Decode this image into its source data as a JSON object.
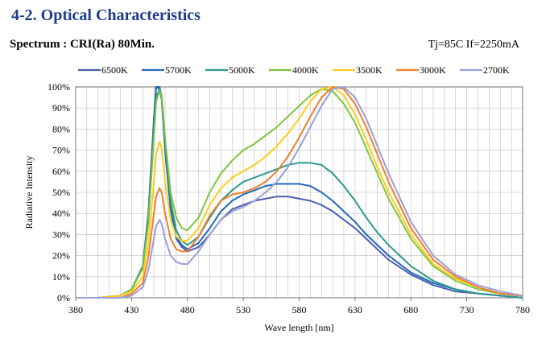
{
  "section_title": "4-2. Optical Characteristics",
  "subtitle": "Spectrum : CRI(Ra) 80Min.",
  "conditions": "Tj=85C    If=2250mA",
  "chart_data": {
    "type": "line",
    "title": "",
    "xlabel": "Wave length [nm]",
    "ylabel": "Radiative Intensity",
    "xlim": [
      380,
      780
    ],
    "ylim": [
      0,
      100
    ],
    "x_ticks": [
      380,
      430,
      480,
      530,
      580,
      630,
      680,
      730,
      780
    ],
    "y_ticks": [
      "0%",
      "10%",
      "20%",
      "30%",
      "40%",
      "50%",
      "60%",
      "70%",
      "80%",
      "90%",
      "100%"
    ],
    "grid": true,
    "legend_position": "top",
    "series": [
      {
        "name": "6500K",
        "color": "#4a5fb0",
        "x": [
          380,
          400,
          420,
          430,
          440,
          445,
          450,
          452,
          455,
          457,
          460,
          465,
          470,
          475,
          480,
          490,
          500,
          510,
          520,
          530,
          540,
          550,
          560,
          570,
          580,
          590,
          600,
          610,
          620,
          630,
          640,
          650,
          660,
          680,
          700,
          720,
          740,
          760,
          780
        ],
        "y": [
          0,
          0,
          1,
          4,
          15,
          40,
          85,
          100,
          99,
          94,
          70,
          42,
          28,
          24,
          22,
          24,
          30,
          37,
          42,
          44,
          46,
          47,
          48,
          48,
          47,
          46,
          44,
          41,
          37,
          33,
          28,
          23,
          18,
          11,
          6,
          3,
          2,
          1,
          0
        ]
      },
      {
        "name": "5700K",
        "color": "#2468b8",
        "x": [
          380,
          400,
          420,
          430,
          440,
          445,
          450,
          452,
          455,
          457,
          460,
          465,
          470,
          475,
          480,
          490,
          500,
          510,
          520,
          530,
          540,
          550,
          560,
          570,
          580,
          590,
          600,
          610,
          620,
          630,
          640,
          650,
          660,
          680,
          700,
          720,
          740,
          760,
          780
        ],
        "y": [
          0,
          0,
          1,
          4,
          14,
          38,
          82,
          100,
          100,
          95,
          70,
          42,
          29,
          25,
          23,
          26,
          33,
          41,
          46,
          49,
          51,
          53,
          54,
          54,
          54,
          53,
          50,
          46,
          41,
          36,
          30,
          25,
          20,
          12,
          7,
          4,
          2,
          1,
          0
        ]
      },
      {
        "name": "5000K",
        "color": "#2e9a8a",
        "x": [
          380,
          400,
          420,
          430,
          440,
          445,
          450,
          452,
          455,
          457,
          460,
          465,
          470,
          475,
          480,
          490,
          500,
          510,
          520,
          530,
          540,
          550,
          560,
          570,
          580,
          590,
          600,
          610,
          620,
          630,
          640,
          650,
          660,
          680,
          700,
          720,
          740,
          760,
          780
        ],
        "y": [
          0,
          0,
          1,
          4,
          14,
          36,
          78,
          95,
          99,
          96,
          74,
          46,
          32,
          27,
          25,
          29,
          38,
          46,
          51,
          55,
          57,
          59,
          61,
          63,
          64,
          64,
          63,
          59,
          53,
          46,
          38,
          31,
          25,
          15,
          8,
          4,
          2,
          1,
          0
        ]
      },
      {
        "name": "4000K",
        "color": "#7dc63c",
        "x": [
          380,
          400,
          420,
          430,
          440,
          445,
          450,
          452,
          455,
          457,
          460,
          465,
          470,
          475,
          480,
          490,
          500,
          510,
          520,
          530,
          540,
          550,
          560,
          570,
          580,
          590,
          600,
          610,
          620,
          630,
          640,
          650,
          660,
          680,
          700,
          720,
          740,
          760,
          780
        ],
        "y": [
          0,
          0,
          1,
          4,
          14,
          35,
          76,
          93,
          98,
          96,
          76,
          50,
          38,
          33,
          32,
          38,
          50,
          59,
          65,
          70,
          73,
          77,
          81,
          86,
          91,
          96,
          99,
          98,
          92,
          83,
          71,
          59,
          47,
          28,
          15,
          8,
          4,
          2,
          1
        ]
      },
      {
        "name": "3500K",
        "color": "#ffcc1a",
        "x": [
          380,
          400,
          420,
          430,
          440,
          445,
          450,
          452,
          455,
          457,
          460,
          465,
          470,
          475,
          480,
          490,
          500,
          510,
          520,
          530,
          540,
          550,
          560,
          570,
          580,
          590,
          600,
          610,
          620,
          630,
          640,
          650,
          660,
          680,
          700,
          720,
          740,
          760,
          780
        ],
        "y": [
          0,
          0,
          1,
          3,
          10,
          26,
          55,
          68,
          74,
          71,
          55,
          37,
          29,
          27,
          27,
          33,
          44,
          52,
          57,
          60,
          63,
          67,
          72,
          78,
          85,
          93,
          99,
          100,
          96,
          87,
          75,
          62,
          50,
          30,
          16,
          9,
          5,
          2,
          1
        ]
      },
      {
        "name": "3000K",
        "color": "#f07f2a",
        "x": [
          380,
          400,
          420,
          430,
          440,
          445,
          450,
          452,
          455,
          457,
          460,
          465,
          470,
          475,
          480,
          490,
          500,
          510,
          520,
          530,
          540,
          550,
          560,
          570,
          580,
          590,
          600,
          610,
          620,
          630,
          640,
          650,
          660,
          680,
          700,
          720,
          740,
          760,
          780
        ],
        "y": [
          0,
          0,
          0,
          2,
          7,
          19,
          40,
          48,
          52,
          50,
          40,
          28,
          23,
          22,
          22,
          29,
          39,
          46,
          49,
          50,
          52,
          55,
          60,
          67,
          76,
          86,
          95,
          100,
          99,
          92,
          81,
          68,
          55,
          33,
          18,
          10,
          5,
          2,
          1
        ]
      },
      {
        "name": "2700K",
        "color": "#9a9fd8",
        "x": [
          380,
          400,
          420,
          430,
          440,
          445,
          450,
          452,
          455,
          457,
          460,
          465,
          470,
          475,
          480,
          490,
          500,
          510,
          520,
          530,
          540,
          550,
          560,
          570,
          580,
          590,
          600,
          610,
          620,
          630,
          640,
          650,
          660,
          680,
          700,
          720,
          740,
          760,
          780
        ],
        "y": [
          0,
          0,
          0,
          1,
          5,
          13,
          28,
          34,
          37,
          35,
          28,
          20,
          17,
          16,
          16,
          22,
          30,
          37,
          41,
          43,
          46,
          50,
          55,
          62,
          71,
          81,
          91,
          99,
          100,
          95,
          85,
          72,
          59,
          36,
          20,
          11,
          6,
          3,
          1
        ]
      }
    ]
  }
}
